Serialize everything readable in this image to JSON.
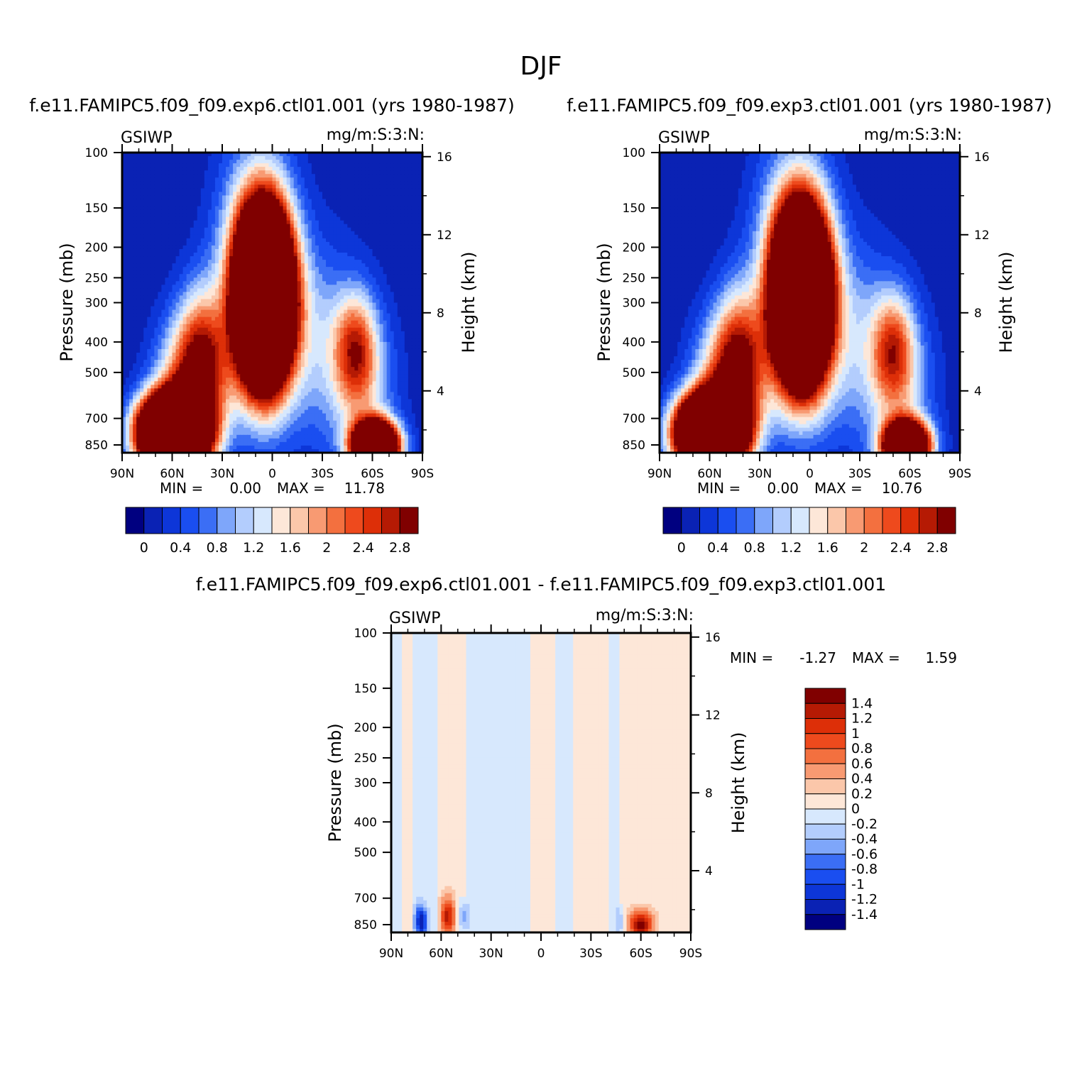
{
  "page_title": "DJF",
  "palette_main": [
    "#000080",
    "#0a22b4",
    "#0d36d8",
    "#1a4ef0",
    "#3b6ef5",
    "#7ea6fa",
    "#b3cdfd",
    "#d7e8fd",
    "#fde7d8",
    "#fbc7aa",
    "#f89a72",
    "#f3703f",
    "#ee4a1d",
    "#dd2f08",
    "#b51a04",
    "#800000"
  ],
  "palette_diff": [
    "#000080",
    "#0a22b4",
    "#0d36d8",
    "#1a4ef0",
    "#3b6ef5",
    "#7ea6fa",
    "#b3cdfd",
    "#d7e8fd",
    "#fde7d8",
    "#fbc7aa",
    "#f89a72",
    "#f3703f",
    "#ee4a1d",
    "#dd2f08",
    "#b51a04",
    "#800000"
  ],
  "chart_data": [
    {
      "type": "heatmap",
      "title": "f.e11.FAMIPC5.f09_f09.exp6.ctl01.001  (yrs  1980-1987)",
      "left_label": "GSIWP",
      "right_label": "mg/m:S:3:N:",
      "xlabel": "",
      "ylabel": "Pressure  (mb)",
      "ylabel_right": "Height  (km)",
      "x_tick_labels": [
        "90N",
        "60N",
        "30N",
        "0",
        "30S",
        "60S",
        "90S"
      ],
      "y_tick_labels": [
        "100",
        "150",
        "200",
        "250",
        "300",
        "400",
        "500",
        "700",
        "850"
      ],
      "y_right_tick_labels": [
        "16",
        "12",
        "8",
        "4"
      ],
      "min_label": "MIN =",
      "min_value": "0.00",
      "max_label": "MAX =",
      "max_value": "11.78",
      "colorbar_labels": [
        "0",
        "0.4",
        "0.8",
        "1.2",
        "1.6",
        "2",
        "2.4",
        "2.8"
      ],
      "features": [
        {
          "lat": 5,
          "p": 290,
          "amp": 10.5,
          "slat": 11,
          "sp": 0.42
        },
        {
          "lat": 10,
          "p": 230,
          "amp": 1.6,
          "slat": 16,
          "sp": 0.6
        },
        {
          "lat": 60,
          "p": 780,
          "amp": 11.0,
          "slat": 13,
          "sp": 0.18
        },
        {
          "lat": 48,
          "p": 560,
          "amp": 2.4,
          "slat": 14,
          "sp": 0.35
        },
        {
          "lat": 42,
          "p": 420,
          "amp": 1.5,
          "slat": 10,
          "sp": 0.35
        },
        {
          "lat": -62,
          "p": 860,
          "amp": 8.0,
          "slat": 9,
          "sp": 0.12
        },
        {
          "lat": -50,
          "p": 420,
          "amp": 1.9,
          "slat": 9,
          "sp": 0.28
        },
        {
          "lat": -25,
          "p": 400,
          "amp": 0.9,
          "slat": 20,
          "sp": 0.5
        },
        {
          "lat": -55,
          "p": 600,
          "amp": 0.9,
          "slat": 14,
          "sp": 0.4
        }
      ]
    },
    {
      "type": "heatmap",
      "title": "f.e11.FAMIPC5.f09_f09.exp3.ctl01.001  (yrs  1980-1987)",
      "left_label": "GSIWP",
      "right_label": "mg/m:S:3:N:",
      "xlabel": "",
      "ylabel": "Pressure  (mb)",
      "ylabel_right": "Height  (km)",
      "x_tick_labels": [
        "90N",
        "60N",
        "30N",
        "0",
        "30S",
        "60S",
        "90S"
      ],
      "y_tick_labels": [
        "100",
        "150",
        "200",
        "250",
        "300",
        "400",
        "500",
        "700",
        "850"
      ],
      "y_right_tick_labels": [
        "16",
        "12",
        "8",
        "4"
      ],
      "min_label": "MIN =",
      "min_value": "0.00",
      "max_label": "MAX =",
      "max_value": "10.76",
      "colorbar_labels": [
        "0",
        "0.4",
        "0.8",
        "1.2",
        "1.6",
        "2",
        "2.4",
        "2.8"
      ],
      "features": [
        {
          "lat": 5,
          "p": 290,
          "amp": 10.0,
          "slat": 11,
          "sp": 0.42
        },
        {
          "lat": 10,
          "p": 230,
          "amp": 1.6,
          "slat": 16,
          "sp": 0.6
        },
        {
          "lat": 60,
          "p": 780,
          "amp": 10.5,
          "slat": 13,
          "sp": 0.18
        },
        {
          "lat": 48,
          "p": 560,
          "amp": 2.4,
          "slat": 14,
          "sp": 0.35
        },
        {
          "lat": 42,
          "p": 420,
          "amp": 1.5,
          "slat": 10,
          "sp": 0.35
        },
        {
          "lat": -58,
          "p": 860,
          "amp": 7.2,
          "slat": 9,
          "sp": 0.12
        },
        {
          "lat": -50,
          "p": 420,
          "amp": 1.8,
          "slat": 9,
          "sp": 0.28
        },
        {
          "lat": -25,
          "p": 400,
          "amp": 0.9,
          "slat": 20,
          "sp": 0.5
        },
        {
          "lat": -55,
          "p": 600,
          "amp": 0.9,
          "slat": 14,
          "sp": 0.4
        }
      ]
    },
    {
      "type": "heatmap",
      "title": "f.e11.FAMIPC5.f09_f09.exp6.ctl01.001 - f.e11.FAMIPC5.f09_f09.exp3.ctl01.001",
      "left_label": "GSIWP",
      "right_label": "mg/m:S:3:N:",
      "xlabel": "",
      "ylabel": "Pressure  (mb)",
      "ylabel_right": "Height  (km)",
      "x_tick_labels": [
        "90N",
        "60N",
        "30N",
        "0",
        "30S",
        "60S",
        "90S"
      ],
      "y_tick_labels": [
        "100",
        "150",
        "200",
        "250",
        "300",
        "400",
        "500",
        "700",
        "850"
      ],
      "y_right_tick_labels": [
        "16",
        "12",
        "8",
        "4"
      ],
      "min_label": "MIN =",
      "min_value": "-1.27",
      "max_label": "MAX =",
      "max_value": "1.59",
      "colorbar_labels": [
        "1.4",
        "1.2",
        "1",
        "0.8",
        "0.6",
        "0.4",
        "0.2",
        "0",
        "-0.2",
        "-0.4",
        "-0.6",
        "-0.8",
        "-1",
        "-1.2",
        "-1.4"
      ],
      "bands": [
        {
          "lat_from": 90,
          "lat_to": 83,
          "v": -0.1
        },
        {
          "lat_from": 83,
          "lat_to": 77,
          "v": 0.1
        },
        {
          "lat_from": 77,
          "lat_to": 62,
          "v": -0.1
        },
        {
          "lat_from": 62,
          "lat_to": 44,
          "v": 0.1
        },
        {
          "lat_from": 44,
          "lat_to": 40,
          "v": -0.1
        },
        {
          "lat_from": 40,
          "lat_to": 6,
          "v": -0.1
        },
        {
          "lat_from": 6,
          "lat_to": -8,
          "v": 0.1
        },
        {
          "lat_from": -8,
          "lat_to": -20,
          "v": -0.1
        },
        {
          "lat_from": -20,
          "lat_to": -40,
          "v": 0.1
        },
        {
          "lat_from": -40,
          "lat_to": -48,
          "v": -0.1
        },
        {
          "lat_from": -48,
          "lat_to": -90,
          "v": 0.1
        }
      ],
      "features": [
        {
          "lat": 72,
          "p": 830,
          "amp": -1.3,
          "slat": 2.5,
          "sp": 0.08
        },
        {
          "lat": 56,
          "p": 800,
          "amp": 1.2,
          "slat": 3,
          "sp": 0.1
        },
        {
          "lat": 47,
          "p": 800,
          "amp": -0.6,
          "slat": 2,
          "sp": 0.08
        },
        {
          "lat": -60,
          "p": 850,
          "amp": 1.5,
          "slat": 5,
          "sp": 0.07
        },
        {
          "lat": -48,
          "p": 830,
          "amp": -0.5,
          "slat": 2,
          "sp": 0.07
        }
      ]
    }
  ]
}
